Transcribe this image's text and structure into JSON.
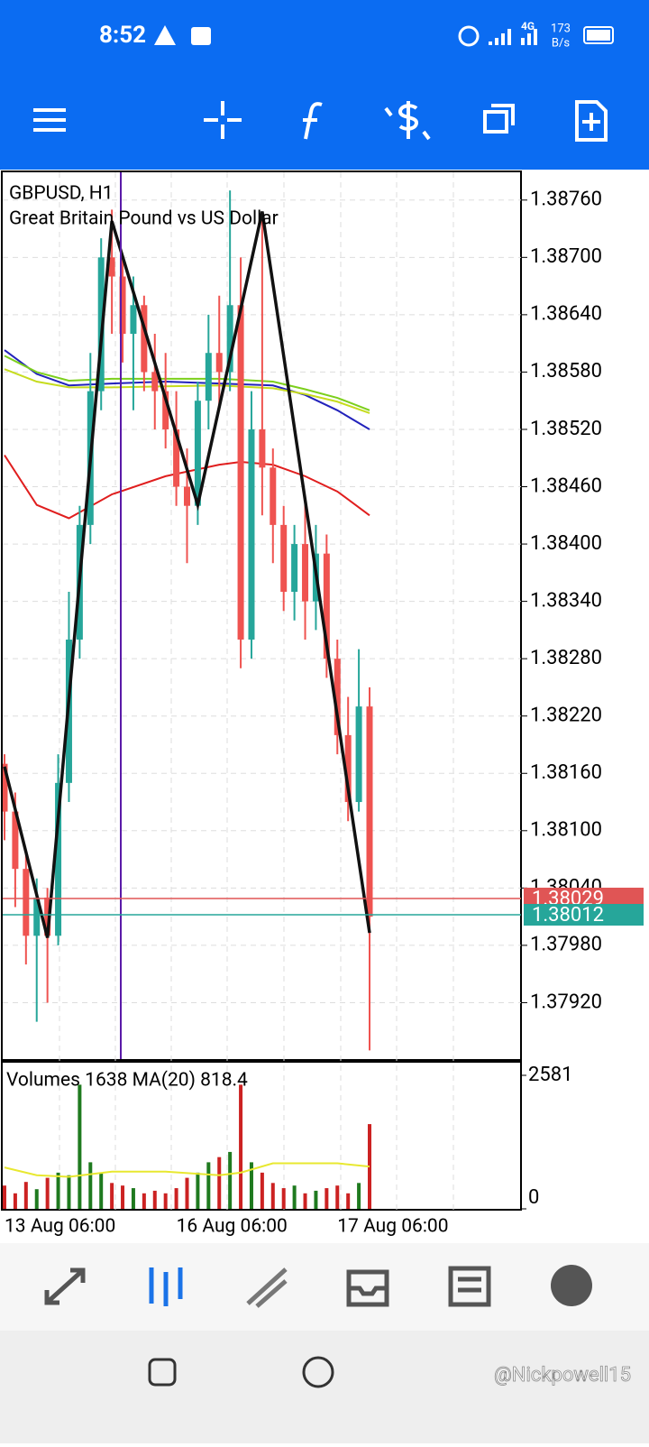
{
  "status_bar": {
    "time": "8:52",
    "network": "4G",
    "speed": "173",
    "speed_unit": "B/s"
  },
  "watermark": "@Nickpowell15",
  "chart_data": {
    "type": "candlestick",
    "title": "GBPUSD, H1",
    "subtitle": "Great Britain Pound vs US Dollar",
    "categories": [
      "13 Aug 06:00",
      null,
      null,
      null,
      null,
      null,
      null,
      null,
      null,
      null,
      null,
      null,
      null,
      null,
      null,
      null,
      "16 Aug 06:00",
      null,
      null,
      null,
      null,
      null,
      null,
      null,
      null,
      null,
      null,
      null,
      null,
      null,
      null,
      "17 Aug 06:00",
      null,
      null,
      null
    ],
    "up_color": "#26a69a",
    "down_color": "#ef5350",
    "candles": {
      "open": [
        1.3817,
        1.3812,
        1.3806,
        1.3799,
        1.3803,
        1.3799,
        1.3815,
        1.383,
        1.3842,
        1.3856,
        1.387,
        1.3868,
        1.3862,
        1.3865,
        1.3858,
        1.3856,
        1.3852,
        1.3846,
        1.3844,
        1.3855,
        1.386,
        1.3858,
        1.3865,
        1.383,
        1.3852,
        1.3848,
        1.3842,
        1.3835,
        1.384,
        1.3834,
        1.3839,
        1.3828,
        1.382,
        1.3813,
        1.3823
      ],
      "high": [
        1.3818,
        1.3814,
        1.3808,
        1.3805,
        1.3804,
        1.3818,
        1.3835,
        1.3844,
        1.386,
        1.3872,
        1.3875,
        1.387,
        1.3868,
        1.3866,
        1.3862,
        1.386,
        1.3856,
        1.385,
        1.3857,
        1.3864,
        1.3866,
        1.3877,
        1.387,
        1.3856,
        1.3874,
        1.385,
        1.3844,
        1.3842,
        1.3845,
        1.3842,
        1.3841,
        1.383,
        1.3824,
        1.3829,
        1.3825
      ],
      "low": [
        1.3809,
        1.3802,
        1.3796,
        1.379,
        1.3792,
        1.3798,
        1.3813,
        1.3828,
        1.384,
        1.3854,
        1.3862,
        1.3859,
        1.3854,
        1.3856,
        1.3852,
        1.385,
        1.3844,
        1.3838,
        1.3842,
        1.3852,
        1.3854,
        1.3856,
        1.3827,
        1.3828,
        1.3843,
        1.3838,
        1.3833,
        1.3832,
        1.383,
        1.3831,
        1.3826,
        1.3818,
        1.3811,
        1.3812,
        1.3787
      ],
      "close": [
        1.3812,
        1.3806,
        1.3799,
        1.3803,
        1.3799,
        1.3815,
        1.383,
        1.3842,
        1.3856,
        1.387,
        1.3868,
        1.3862,
        1.3865,
        1.3858,
        1.3856,
        1.3852,
        1.3846,
        1.3844,
        1.3855,
        1.386,
        1.3858,
        1.3865,
        1.383,
        1.3852,
        1.3848,
        1.3842,
        1.3835,
        1.384,
        1.3834,
        1.3839,
        1.3828,
        1.382,
        1.3813,
        1.3823,
        1.3801
      ]
    },
    "moving_averages": [
      {
        "color": "#2222bb",
        "x": [
          0,
          3,
          6,
          10,
          15,
          20,
          25,
          28,
          31,
          34
        ],
        "values": [
          1.38603,
          1.38578,
          1.38566,
          1.38568,
          1.3857,
          1.38568,
          1.38566,
          1.38556,
          1.3854,
          1.3852
        ]
      },
      {
        "color": "#7ccf1c",
        "x": [
          0,
          3,
          6,
          10,
          15,
          20,
          25,
          28,
          31,
          34
        ],
        "values": [
          1.38597,
          1.3858,
          1.38571,
          1.38573,
          1.38573,
          1.38573,
          1.3857,
          1.38562,
          1.38553,
          1.3854
        ]
      },
      {
        "color": "#c6dc1e",
        "x": [
          0,
          3,
          6,
          10,
          15,
          20,
          25,
          28,
          31,
          34
        ],
        "values": [
          1.38583,
          1.3857,
          1.38564,
          1.38564,
          1.38565,
          1.38566,
          1.38563,
          1.38557,
          1.38549,
          1.38537
        ]
      },
      {
        "color": "#e01e1e",
        "x": [
          0,
          3,
          6,
          10,
          15,
          20,
          22,
          25,
          28,
          31,
          34
        ],
        "values": [
          1.38493,
          1.38441,
          1.38427,
          1.38452,
          1.38471,
          1.38483,
          1.38486,
          1.38483,
          1.38471,
          1.38455,
          1.3843
        ]
      }
    ],
    "zigzag": {
      "color": "#111111",
      "x": [
        0,
        4,
        10,
        18,
        24,
        34
      ],
      "values": [
        1.38167,
        1.37988,
        1.38738,
        1.38441,
        1.38748,
        1.37993
      ]
    },
    "price_lines": [
      {
        "value": 1.38029,
        "color": "#e05555"
      },
      {
        "value": 1.38012,
        "color": "#26a69a"
      }
    ],
    "ylim": [
      1.3786,
      1.3879
    ],
    "yticks": [
      {
        "value": 1.3876,
        "label": "1.38760"
      },
      {
        "value": 1.387,
        "label": "1.38700"
      },
      {
        "value": 1.3864,
        "label": "1.38640"
      },
      {
        "value": 1.3858,
        "label": "1.38580"
      },
      {
        "value": 1.3852,
        "label": "1.38520"
      },
      {
        "value": 1.3846,
        "label": "1.38460"
      },
      {
        "value": 1.384,
        "label": "1.38400"
      },
      {
        "value": 1.3834,
        "label": "1.38340"
      },
      {
        "value": 1.3828,
        "label": "1.38280"
      },
      {
        "value": 1.3822,
        "label": "1.38220"
      },
      {
        "value": 1.3816,
        "label": "1.38160"
      },
      {
        "value": 1.381,
        "label": "1.38100"
      },
      {
        "value": 1.3804,
        "label": "1.38040"
      },
      {
        "value": 1.3798,
        "label": "1.37980"
      },
      {
        "value": 1.3792,
        "label": "1.37920"
      }
    ],
    "grid": true,
    "volume": {
      "label": "Volumes 1638 MA(20) 818.4",
      "up_color": "#1f7a1f",
      "down_color": "#cc2222",
      "values": [
        450,
        300,
        520,
        380,
        600,
        700,
        650,
        2400,
        900,
        700,
        500,
        450,
        400,
        300,
        350,
        300,
        400,
        600,
        700,
        900,
        1000,
        1100,
        2400,
        900,
        700,
        500,
        400,
        450,
        300,
        350,
        400,
        450,
        300,
        500,
        1638
      ],
      "ylim": [
        0,
        2581
      ],
      "yticks": [
        2581,
        0
      ],
      "ma": {
        "color": "#e8e830",
        "x": [
          0,
          3,
          6,
          10,
          15,
          20,
          22,
          25,
          28,
          31,
          34
        ],
        "values": [
          800,
          650,
          620,
          720,
          720,
          650,
          700,
          880,
          880,
          880,
          818.4
        ]
      }
    }
  }
}
